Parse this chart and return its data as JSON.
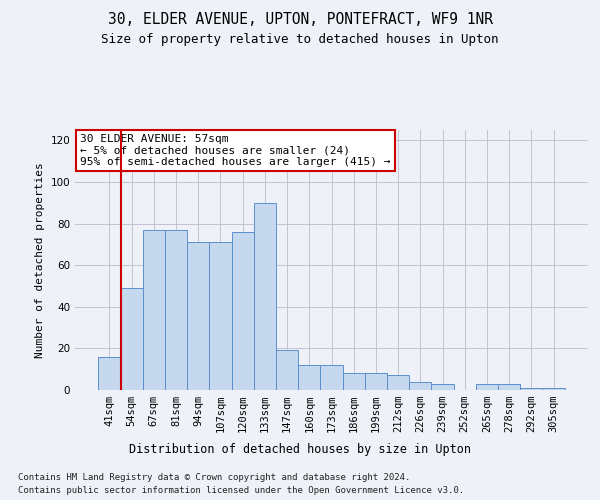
{
  "title1": "30, ELDER AVENUE, UPTON, PONTEFRACT, WF9 1NR",
  "title2": "Size of property relative to detached houses in Upton",
  "xlabel": "Distribution of detached houses by size in Upton",
  "ylabel": "Number of detached properties",
  "categories": [
    "41sqm",
    "54sqm",
    "67sqm",
    "81sqm",
    "94sqm",
    "107sqm",
    "120sqm",
    "133sqm",
    "147sqm",
    "160sqm",
    "173sqm",
    "186sqm",
    "199sqm",
    "212sqm",
    "226sqm",
    "239sqm",
    "252sqm",
    "265sqm",
    "278sqm",
    "292sqm",
    "305sqm"
  ],
  "bar_values": [
    16,
    49,
    77,
    77,
    71,
    71,
    76,
    90,
    19,
    12,
    12,
    8,
    8,
    7,
    4,
    3,
    0,
    3,
    3,
    1,
    1
  ],
  "bar_color": "#c5d8ee",
  "bar_edge_color": "#5b8fcc",
  "ylim": [
    0,
    125
  ],
  "yticks": [
    0,
    20,
    40,
    60,
    80,
    100,
    120
  ],
  "vline_x": 0.5,
  "vline_color": "#cc0000",
  "annotation_text": "30 ELDER AVENUE: 57sqm\n← 5% of detached houses are smaller (24)\n95% of semi-detached houses are larger (415) →",
  "annotation_box_color": "#ffffff",
  "annotation_box_edge": "#cc0000",
  "footer_line1": "Contains HM Land Registry data © Crown copyright and database right 2024.",
  "footer_line2": "Contains public sector information licensed under the Open Government Licence v3.0.",
  "background_color": "#eef2f8",
  "title1_fontsize": 10.5,
  "title2_fontsize": 9,
  "ylabel_fontsize": 8,
  "tick_fontsize": 7.5,
  "ann_fontsize": 8,
  "footer_fontsize": 6.5
}
